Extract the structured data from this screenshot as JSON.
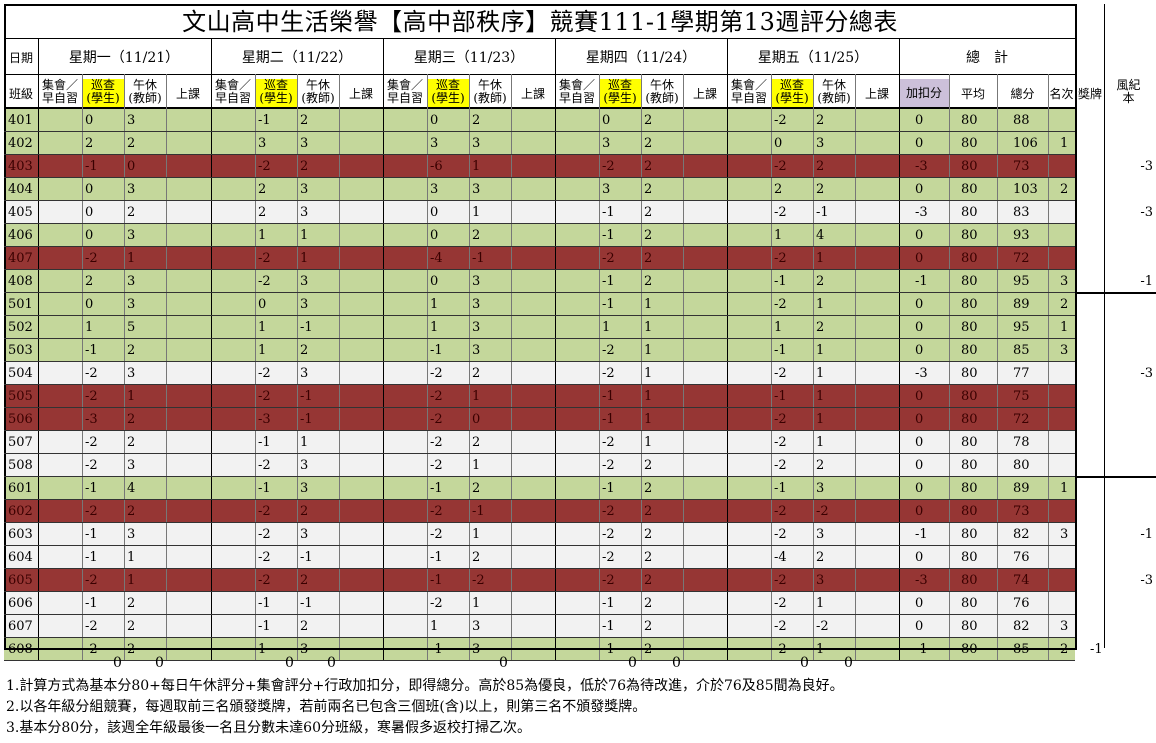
{
  "title": "文山高中生活榮譽【高中部秩序】競賽111-1學期第13週評分總表",
  "header": {
    "date_label": "日期",
    "class_label": "班級",
    "days": [
      "星期一（11/21）",
      "星期二（11/22）",
      "星期三（11/23）",
      "星期四（11/24）",
      "星期五（11/25）"
    ],
    "total_label": "總　計",
    "sub_assembly": [
      "集會／",
      "早自習"
    ],
    "sub_patrol": [
      "巡查",
      "(學生)"
    ],
    "sub_noon": [
      "午休",
      "(教師)"
    ],
    "sub_class": "上課",
    "col_bonus": "加扣分",
    "col_avg": "平均",
    "col_total": "總分",
    "col_rank": "名次",
    "col_award": "獎牌",
    "col_conduct": [
      "風紀",
      "本"
    ]
  },
  "colors": {
    "green": "#c4d79b",
    "red": "#963634",
    "white": "#f2f2f2",
    "yellow": "#ffff00",
    "purple": "#ccc0da"
  },
  "rows": [
    {
      "cls": "401",
      "c": "g",
      "d": [
        [
          "0",
          "3"
        ],
        [
          "-1",
          "2"
        ],
        [
          "0",
          "2"
        ],
        [
          "0",
          "2"
        ],
        [
          "-2",
          "2"
        ]
      ],
      "bonus": "0",
      "avg": "80",
      "total": "88",
      "rank": "",
      "award": "",
      "conduct": ""
    },
    {
      "cls": "402",
      "c": "g",
      "d": [
        [
          "2",
          "2"
        ],
        [
          "3",
          "3"
        ],
        [
          "3",
          "3"
        ],
        [
          "3",
          "2"
        ],
        [
          "0",
          "3"
        ]
      ],
      "bonus": "0",
      "avg": "80",
      "total": "106",
      "rank": "1",
      "award": "",
      "conduct": ""
    },
    {
      "cls": "403",
      "c": "r",
      "d": [
        [
          "-1",
          "0"
        ],
        [
          "-2",
          "2"
        ],
        [
          "-6",
          "1"
        ],
        [
          "-2",
          "2"
        ],
        [
          "-2",
          "2"
        ]
      ],
      "bonus": "-3",
      "avg": "80",
      "total": "73",
      "rank": "",
      "award": "",
      "conduct": "-3"
    },
    {
      "cls": "404",
      "c": "g",
      "d": [
        [
          "0",
          "3"
        ],
        [
          "2",
          "3"
        ],
        [
          "3",
          "3"
        ],
        [
          "3",
          "2"
        ],
        [
          "2",
          "2"
        ]
      ],
      "bonus": "0",
      "avg": "80",
      "total": "103",
      "rank": "2",
      "award": "",
      "conduct": ""
    },
    {
      "cls": "405",
      "c": "w",
      "d": [
        [
          "0",
          "2"
        ],
        [
          "2",
          "3"
        ],
        [
          "0",
          "1"
        ],
        [
          "-1",
          "2"
        ],
        [
          "-2",
          "-1"
        ]
      ],
      "bonus": "-3",
      "avg": "80",
      "total": "83",
      "rank": "",
      "award": "",
      "conduct": "-3"
    },
    {
      "cls": "406",
      "c": "g",
      "d": [
        [
          "0",
          "3"
        ],
        [
          "1",
          "1"
        ],
        [
          "0",
          "2"
        ],
        [
          "-1",
          "2"
        ],
        [
          "1",
          "4"
        ]
      ],
      "bonus": "0",
      "avg": "80",
      "total": "93",
      "rank": "",
      "award": "",
      "conduct": ""
    },
    {
      "cls": "407",
      "c": "r",
      "d": [
        [
          "-2",
          "1"
        ],
        [
          "-2",
          "1"
        ],
        [
          "-4",
          "-1"
        ],
        [
          "-2",
          "2"
        ],
        [
          "-2",
          "1"
        ]
      ],
      "bonus": "0",
      "avg": "80",
      "total": "72",
      "rank": "",
      "award": "",
      "conduct": ""
    },
    {
      "cls": "408",
      "c": "g",
      "d": [
        [
          "2",
          "3"
        ],
        [
          "-2",
          "3"
        ],
        [
          "0",
          "3"
        ],
        [
          "-1",
          "2"
        ],
        [
          "-1",
          "2"
        ]
      ],
      "bonus": "-1",
      "avg": "80",
      "total": "95",
      "rank": "3",
      "award": "",
      "conduct": "-1"
    },
    {
      "cls": "501",
      "c": "g",
      "d": [
        [
          "0",
          "3"
        ],
        [
          "0",
          "3"
        ],
        [
          "1",
          "3"
        ],
        [
          "-1",
          "1"
        ],
        [
          "-2",
          "1"
        ]
      ],
      "bonus": "0",
      "avg": "80",
      "total": "89",
      "rank": "2",
      "award": "",
      "conduct": ""
    },
    {
      "cls": "502",
      "c": "g",
      "d": [
        [
          "1",
          "5"
        ],
        [
          "1",
          "-1"
        ],
        [
          "1",
          "3"
        ],
        [
          "1",
          "1"
        ],
        [
          "1",
          "2"
        ]
      ],
      "bonus": "0",
      "avg": "80",
      "total": "95",
      "rank": "1",
      "award": "",
      "conduct": ""
    },
    {
      "cls": "503",
      "c": "g",
      "d": [
        [
          "-1",
          "2"
        ],
        [
          "1",
          "2"
        ],
        [
          "-1",
          "3"
        ],
        [
          "-2",
          "1"
        ],
        [
          "-1",
          "1"
        ]
      ],
      "bonus": "0",
      "avg": "80",
      "total": "85",
      "rank": "3",
      "award": "",
      "conduct": ""
    },
    {
      "cls": "504",
      "c": "w",
      "d": [
        [
          "-2",
          "3"
        ],
        [
          "-2",
          "3"
        ],
        [
          "-2",
          "2"
        ],
        [
          "-2",
          "1"
        ],
        [
          "-2",
          "1"
        ]
      ],
      "bonus": "-3",
      "avg": "80",
      "total": "77",
      "rank": "",
      "award": "",
      "conduct": "-3"
    },
    {
      "cls": "505",
      "c": "r",
      "d": [
        [
          "-2",
          "1"
        ],
        [
          "-2",
          "-1"
        ],
        [
          "-2",
          "1"
        ],
        [
          "-1",
          "1"
        ],
        [
          "-1",
          "1"
        ]
      ],
      "bonus": "0",
      "avg": "80",
      "total": "75",
      "rank": "",
      "award": "",
      "conduct": ""
    },
    {
      "cls": "506",
      "c": "r",
      "d": [
        [
          "-3",
          "2"
        ],
        [
          "-3",
          "-1"
        ],
        [
          "-2",
          "0"
        ],
        [
          "-1",
          "1"
        ],
        [
          "-2",
          "1"
        ]
      ],
      "bonus": "0",
      "avg": "80",
      "total": "72",
      "rank": "",
      "award": "",
      "conduct": ""
    },
    {
      "cls": "507",
      "c": "w",
      "d": [
        [
          "-2",
          "2"
        ],
        [
          "-1",
          "1"
        ],
        [
          "-2",
          "2"
        ],
        [
          "-2",
          "1"
        ],
        [
          "-2",
          "1"
        ]
      ],
      "bonus": "0",
      "avg": "80",
      "total": "78",
      "rank": "",
      "award": "",
      "conduct": ""
    },
    {
      "cls": "508",
      "c": "w",
      "d": [
        [
          "-2",
          "3"
        ],
        [
          "-2",
          "3"
        ],
        [
          "-2",
          "1"
        ],
        [
          "-2",
          "2"
        ],
        [
          "-2",
          "2"
        ]
      ],
      "bonus": "0",
      "avg": "80",
      "total": "80",
      "rank": "",
      "award": "",
      "conduct": ""
    },
    {
      "cls": "601",
      "c": "g",
      "d": [
        [
          "-1",
          "4"
        ],
        [
          "-1",
          "3"
        ],
        [
          "-1",
          "2"
        ],
        [
          "-1",
          "2"
        ],
        [
          "-1",
          "3"
        ]
      ],
      "bonus": "0",
      "avg": "80",
      "total": "89",
      "rank": "1",
      "award": "",
      "conduct": ""
    },
    {
      "cls": "602",
      "c": "r",
      "d": [
        [
          "-2",
          "2"
        ],
        [
          "-2",
          "2"
        ],
        [
          "-2",
          "-1"
        ],
        [
          "-2",
          "2"
        ],
        [
          "-2",
          "-2"
        ]
      ],
      "bonus": "0",
      "avg": "80",
      "total": "73",
      "rank": "",
      "award": "",
      "conduct": ""
    },
    {
      "cls": "603",
      "c": "w",
      "d": [
        [
          "-1",
          "3"
        ],
        [
          "-2",
          "3"
        ],
        [
          "-2",
          "1"
        ],
        [
          "-2",
          "2"
        ],
        [
          "-2",
          "3"
        ]
      ],
      "bonus": "-1",
      "avg": "80",
      "total": "82",
      "rank": "3",
      "award": "",
      "conduct": "-1"
    },
    {
      "cls": "604",
      "c": "w",
      "d": [
        [
          "-1",
          "1"
        ],
        [
          "-2",
          "-1"
        ],
        [
          "-1",
          "2"
        ],
        [
          "-2",
          "2"
        ],
        [
          "-4",
          "2"
        ]
      ],
      "bonus": "0",
      "avg": "80",
      "total": "76",
      "rank": "",
      "award": "",
      "conduct": ""
    },
    {
      "cls": "605",
      "c": "r",
      "d": [
        [
          "-2",
          "1"
        ],
        [
          "-2",
          "2"
        ],
        [
          "-1",
          "-2"
        ],
        [
          "-2",
          "2"
        ],
        [
          "-2",
          "3"
        ]
      ],
      "bonus": "-3",
      "avg": "80",
      "total": "74",
      "rank": "",
      "award": "",
      "conduct": "-3"
    },
    {
      "cls": "606",
      "c": "w",
      "d": [
        [
          "-1",
          "2"
        ],
        [
          "-1",
          "-1"
        ],
        [
          "-2",
          "1"
        ],
        [
          "-1",
          "2"
        ],
        [
          "-2",
          "1"
        ]
      ],
      "bonus": "0",
      "avg": "80",
      "total": "76",
      "rank": "",
      "award": "",
      "conduct": ""
    },
    {
      "cls": "607",
      "c": "w",
      "d": [
        [
          "-2",
          "2"
        ],
        [
          "-1",
          "2"
        ],
        [
          "1",
          "3"
        ],
        [
          "-1",
          "2"
        ],
        [
          "-2",
          "-2"
        ]
      ],
      "bonus": "0",
      "avg": "80",
      "total": "82",
      "rank": "3",
      "award": "",
      "conduct": ""
    },
    {
      "cls": "608",
      "c": "g",
      "d": [
        [
          "-2",
          "2"
        ],
        [
          "1",
          "3"
        ],
        [
          "-1",
          "3"
        ],
        [
          "-1",
          "2"
        ],
        [
          "-2",
          "1"
        ]
      ],
      "bonus": "-1",
      "avg": "80",
      "total": "85",
      "rank": "2",
      "award": "-1",
      "conduct": ""
    }
  ],
  "footer_totals": [
    "0",
    "0",
    "0",
    "0",
    "0",
    "0",
    "0",
    "0",
    "0"
  ],
  "notes": [
    "1.計算方式為基本分80+每日午休評分+集會評分+行政加扣分，即得總分。高於85為優良，低於76為待改進，介於76及85間為良好。",
    "2.以各年級分組競賽，每週取前三名頒發獎牌，若前兩名已包含三個班(含)以上，則第三名不頒發獎牌。",
    "3.基本分80分，該週全年級最後一名且分數未達60分班級，寒暑假多返校打掃乙次。"
  ]
}
